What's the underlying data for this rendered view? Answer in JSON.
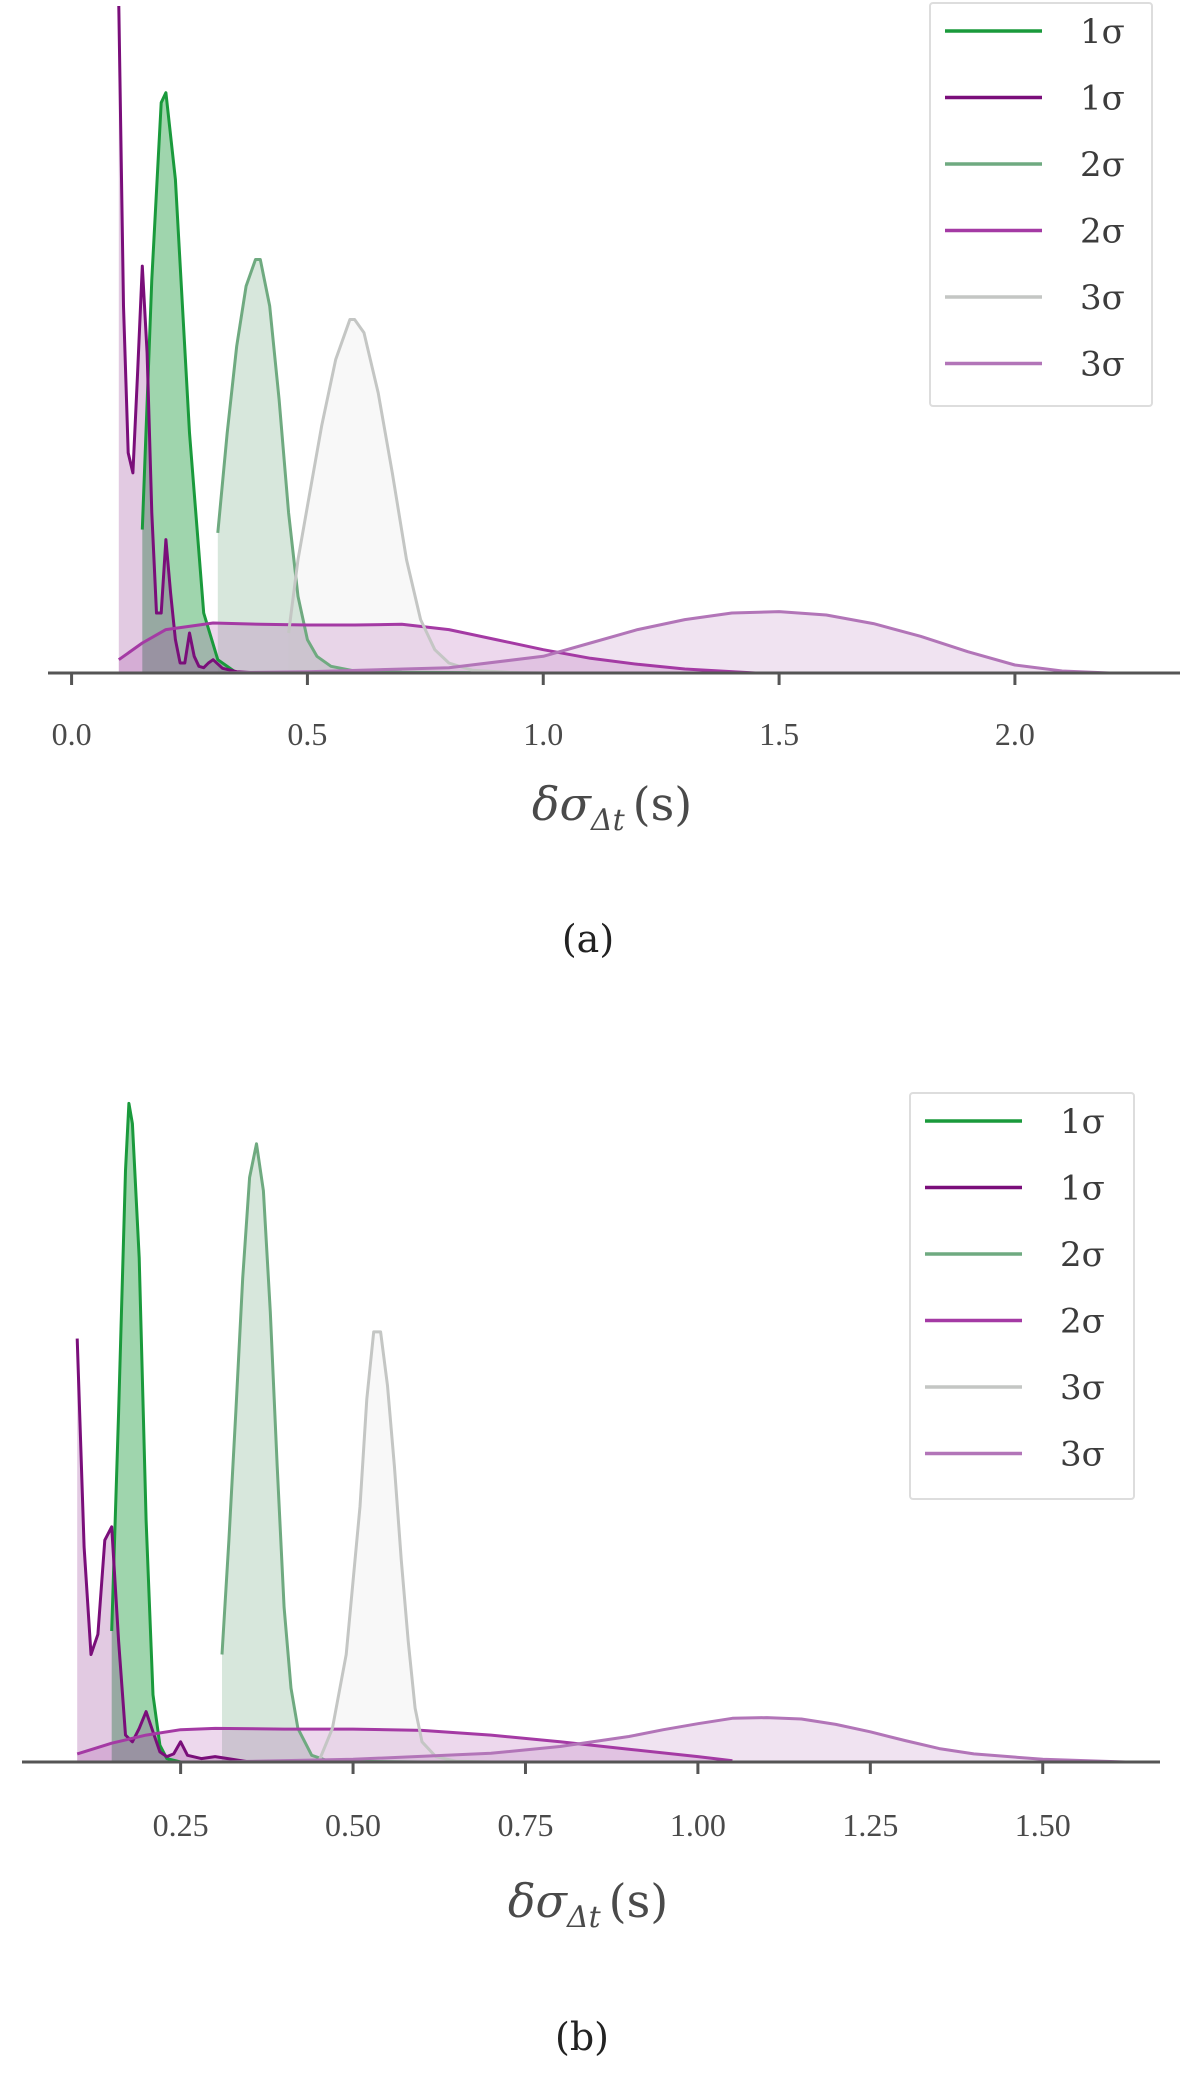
{
  "chart_data": [
    {
      "type": "area",
      "panel": "a",
      "caption": "(a)",
      "xlabel": {
        "main": "δσ",
        "sub": "Δt",
        "unit": "(s)"
      },
      "ylabel": "",
      "xlim": [
        -0.05,
        2.35
      ],
      "xticks": [
        0.0,
        0.5,
        1.0,
        1.5,
        2.0
      ],
      "xtick_labels": [
        "0.0",
        "0.5",
        "1.0",
        "1.5",
        "2.0"
      ],
      "ylim": [
        0,
        1
      ],
      "grid": false,
      "legend_position": "top-right",
      "legend": [
        "1σ",
        "1σ",
        "2σ",
        "2σ",
        "3σ",
        "3σ"
      ],
      "series": [
        {
          "name": "1σ",
          "color": "#1a9a3c",
          "x": [
            0.15,
            0.17,
            0.19,
            0.2,
            0.22,
            0.25,
            0.28,
            0.31,
            0.35
          ],
          "y": [
            0.215,
            0.59,
            0.855,
            0.87,
            0.74,
            0.36,
            0.09,
            0.02,
            0.0
          ]
        },
        {
          "name": "1σ",
          "color": "#7a0e7a",
          "x": [
            0.1,
            0.11,
            0.12,
            0.13,
            0.14,
            0.15,
            0.16,
            0.17,
            0.18,
            0.19,
            0.2,
            0.21,
            0.22,
            0.23,
            0.24,
            0.25,
            0.26,
            0.27,
            0.28,
            0.29,
            0.3,
            0.32,
            0.35,
            0.4
          ],
          "y": [
            1.0,
            0.55,
            0.33,
            0.3,
            0.45,
            0.61,
            0.48,
            0.24,
            0.09,
            0.09,
            0.2,
            0.12,
            0.05,
            0.015,
            0.015,
            0.06,
            0.025,
            0.01,
            0.008,
            0.015,
            0.02,
            0.007,
            0.002,
            0.0
          ]
        },
        {
          "name": "2σ",
          "color": "#6faa80",
          "x": [
            0.31,
            0.33,
            0.35,
            0.37,
            0.39,
            0.4,
            0.42,
            0.44,
            0.46,
            0.48,
            0.5,
            0.52,
            0.55,
            0.6,
            0.7,
            1.0,
            1.23
          ],
          "y": [
            0.21,
            0.36,
            0.49,
            0.58,
            0.62,
            0.62,
            0.55,
            0.41,
            0.24,
            0.115,
            0.05,
            0.025,
            0.01,
            0.003,
            0.001,
            0.0,
            0.0
          ]
        },
        {
          "name": "2σ",
          "color": "#a43aa4",
          "x": [
            0.1,
            0.15,
            0.2,
            0.3,
            0.4,
            0.5,
            0.6,
            0.7,
            0.8,
            0.9,
            1.0,
            1.1,
            1.2,
            1.3,
            1.45
          ],
          "y": [
            0.02,
            0.045,
            0.065,
            0.075,
            0.073,
            0.072,
            0.072,
            0.073,
            0.065,
            0.05,
            0.035,
            0.022,
            0.013,
            0.006,
            0.0
          ]
        },
        {
          "name": "3σ",
          "color": "#c4c6c4",
          "x": [
            0.46,
            0.48,
            0.5,
            0.53,
            0.56,
            0.59,
            0.6,
            0.62,
            0.65,
            0.68,
            0.71,
            0.74,
            0.77,
            0.8,
            0.85,
            0.95
          ],
          "y": [
            0.06,
            0.17,
            0.25,
            0.37,
            0.47,
            0.53,
            0.53,
            0.51,
            0.42,
            0.3,
            0.17,
            0.08,
            0.035,
            0.015,
            0.004,
            0.0
          ]
        },
        {
          "name": "3σ",
          "color": "#b275b8",
          "x": [
            0.3,
            0.5,
            0.8,
            1.0,
            1.1,
            1.2,
            1.3,
            1.4,
            1.5,
            1.6,
            1.7,
            1.8,
            1.9,
            2.0,
            2.1,
            2.2
          ],
          "y": [
            0.0,
            0.002,
            0.008,
            0.025,
            0.045,
            0.065,
            0.08,
            0.09,
            0.092,
            0.087,
            0.074,
            0.055,
            0.032,
            0.012,
            0.003,
            0.0
          ]
        }
      ]
    },
    {
      "type": "area",
      "panel": "b",
      "caption": "(b)",
      "xlabel": {
        "main": "δσ",
        "sub": "Δt",
        "unit": "(s)"
      },
      "ylabel": "",
      "xlim": [
        0.02,
        1.67
      ],
      "xticks": [
        0.25,
        0.5,
        0.75,
        1.0,
        1.25,
        1.5
      ],
      "xtick_labels": [
        "0.25",
        "0.50",
        "0.75",
        "1.00",
        "1.25",
        "1.50"
      ],
      "ylim": [
        0,
        1
      ],
      "grid": false,
      "legend_position": "top-right",
      "legend": [
        "1σ",
        "1σ",
        "2σ",
        "2σ",
        "3σ",
        "3σ"
      ],
      "series": [
        {
          "name": "1σ",
          "color": "#1a9a3c",
          "x": [
            0.15,
            0.16,
            0.17,
            0.175,
            0.18,
            0.19,
            0.2,
            0.21,
            0.22,
            0.23,
            0.25
          ],
          "y": [
            0.195,
            0.52,
            0.88,
            0.98,
            0.95,
            0.75,
            0.36,
            0.1,
            0.025,
            0.005,
            0.0
          ]
        },
        {
          "name": "1σ",
          "color": "#7a0e7a",
          "x": [
            0.1,
            0.11,
            0.12,
            0.13,
            0.14,
            0.15,
            0.16,
            0.17,
            0.18,
            0.19,
            0.2,
            0.21,
            0.22,
            0.23,
            0.24,
            0.25,
            0.26,
            0.28,
            0.3,
            0.35
          ],
          "y": [
            0.63,
            0.32,
            0.16,
            0.19,
            0.33,
            0.35,
            0.18,
            0.04,
            0.03,
            0.05,
            0.075,
            0.045,
            0.015,
            0.008,
            0.012,
            0.03,
            0.01,
            0.005,
            0.008,
            0.0
          ]
        },
        {
          "name": "2σ",
          "color": "#6faa80",
          "x": [
            0.31,
            0.32,
            0.33,
            0.34,
            0.35,
            0.36,
            0.37,
            0.38,
            0.39,
            0.4,
            0.41,
            0.42,
            0.44,
            0.46,
            0.5,
            0.6,
            1.0,
            1.11
          ],
          "y": [
            0.16,
            0.33,
            0.52,
            0.72,
            0.87,
            0.92,
            0.85,
            0.67,
            0.44,
            0.23,
            0.11,
            0.05,
            0.01,
            0.003,
            0.001,
            0.0,
            0.0,
            0.0
          ]
        },
        {
          "name": "2σ",
          "color": "#a43aa4",
          "x": [
            0.1,
            0.15,
            0.2,
            0.25,
            0.3,
            0.4,
            0.5,
            0.6,
            0.7,
            0.8,
            0.9,
            1.0,
            1.05
          ],
          "y": [
            0.012,
            0.028,
            0.04,
            0.048,
            0.05,
            0.049,
            0.049,
            0.047,
            0.04,
            0.03,
            0.019,
            0.008,
            0.002
          ]
        },
        {
          "name": "3σ",
          "color": "#c4c6c4",
          "x": [
            0.45,
            0.47,
            0.49,
            0.51,
            0.52,
            0.53,
            0.54,
            0.55,
            0.56,
            0.57,
            0.58,
            0.59,
            0.6,
            0.62,
            0.65,
            0.7
          ],
          "y": [
            0.0,
            0.05,
            0.16,
            0.38,
            0.54,
            0.64,
            0.64,
            0.56,
            0.44,
            0.3,
            0.18,
            0.08,
            0.03,
            0.008,
            0.001,
            0.0
          ]
        },
        {
          "name": "3σ",
          "color": "#b275b8",
          "x": [
            0.3,
            0.5,
            0.7,
            0.8,
            0.9,
            0.95,
            1.0,
            1.05,
            1.1,
            1.15,
            1.2,
            1.25,
            1.3,
            1.35,
            1.4,
            1.5,
            1.62
          ],
          "y": [
            0.0,
            0.004,
            0.013,
            0.023,
            0.038,
            0.048,
            0.057,
            0.065,
            0.066,
            0.064,
            0.056,
            0.045,
            0.032,
            0.02,
            0.012,
            0.004,
            0.0
          ]
        }
      ]
    }
  ]
}
